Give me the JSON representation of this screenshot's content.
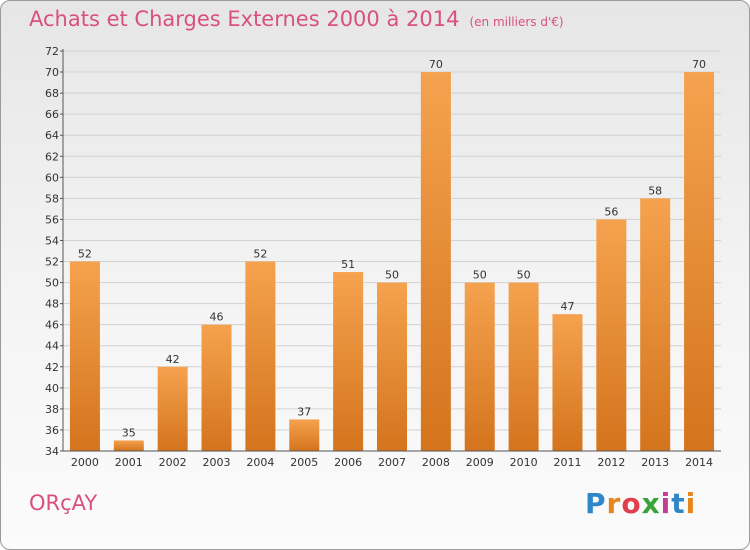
{
  "header": {
    "title": "Achats et Charges Externes 2000 à 2014",
    "subtitle": "(en milliers d'€)"
  },
  "footer": {
    "commune": "ORçAY",
    "brand_letters": [
      "P",
      "r",
      "o",
      "x",
      "i",
      "t",
      "i"
    ]
  },
  "colors": {
    "title": "#d9507f",
    "bar_light": "#f5a24e",
    "bar_dark": "#d4741d",
    "axis": "#555555"
  },
  "chart_data": {
    "type": "bar",
    "categories": [
      "2000",
      "2001",
      "2002",
      "2003",
      "2004",
      "2005",
      "2006",
      "2007",
      "2008",
      "2009",
      "2010",
      "2011",
      "2012",
      "2013",
      "2014"
    ],
    "values": [
      52,
      35,
      42,
      46,
      52,
      37,
      51,
      50,
      70,
      50,
      50,
      47,
      56,
      58,
      70
    ],
    "data_labels": [
      "52",
      "35",
      "42",
      "46",
      "52",
      "37",
      "51",
      "50",
      "70",
      "50",
      "50",
      "47",
      "56",
      "58",
      "70"
    ],
    "title": "Achats et Charges Externes 2000 à 2014",
    "subtitle": "(en milliers d'€)",
    "xlabel": "",
    "ylabel": "",
    "ylim": [
      34,
      72
    ],
    "yticks": [
      34,
      36,
      38,
      40,
      42,
      44,
      46,
      48,
      50,
      52,
      54,
      56,
      58,
      60,
      62,
      64,
      66,
      68,
      70,
      72
    ],
    "grid": true,
    "grid_axis": "y",
    "legend": "none"
  }
}
